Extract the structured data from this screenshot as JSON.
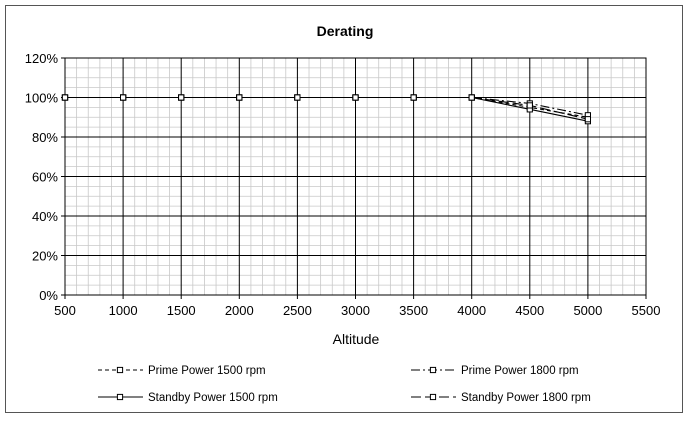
{
  "chart_data": {
    "type": "line",
    "title": "Derating",
    "xlabel": "Altitude",
    "ylabel": "",
    "xlim": [
      500,
      5500
    ],
    "ylim": [
      0,
      120
    ],
    "x_ticks": [
      500,
      1000,
      1500,
      2000,
      2500,
      3000,
      3500,
      4000,
      4500,
      5000,
      5500
    ],
    "y_ticks": [
      "0%",
      "20%",
      "40%",
      "60%",
      "80%",
      "100%",
      "120%"
    ],
    "y_tick_values": [
      0,
      20,
      40,
      60,
      80,
      100,
      120
    ],
    "grid": true,
    "legend_position": "bottom",
    "series": [
      {
        "name": "Prime Power 1500 rpm",
        "style": "dashed",
        "color": "#000000",
        "x": [
          500,
          1000,
          1500,
          2000,
          2500,
          3000,
          3500,
          4000,
          4500,
          5000
        ],
        "values": [
          100,
          100,
          100,
          100,
          100,
          100,
          100,
          100,
          95,
          90
        ]
      },
      {
        "name": "Prime Power 1800 rpm",
        "style": "dashdot",
        "color": "#000000",
        "x": [
          500,
          1000,
          1500,
          2000,
          2500,
          3000,
          3500,
          4000,
          4500,
          5000
        ],
        "values": [
          100,
          100,
          100,
          100,
          100,
          100,
          100,
          100,
          97,
          91
        ]
      },
      {
        "name": "Standby Power 1500 rpm",
        "style": "solid",
        "color": "#000000",
        "x": [
          500,
          1000,
          1500,
          2000,
          2500,
          3000,
          3500,
          4000,
          4500,
          5000
        ],
        "values": [
          100,
          100,
          100,
          100,
          100,
          100,
          100,
          100,
          94,
          88
        ]
      },
      {
        "name": "Standby Power 1800 rpm",
        "style": "longdash",
        "color": "#000000",
        "x": [
          500,
          1000,
          1500,
          2000,
          2500,
          3000,
          3500,
          4000,
          4500,
          5000
        ],
        "values": [
          100,
          100,
          100,
          100,
          100,
          100,
          100,
          100,
          96,
          89
        ]
      }
    ]
  }
}
